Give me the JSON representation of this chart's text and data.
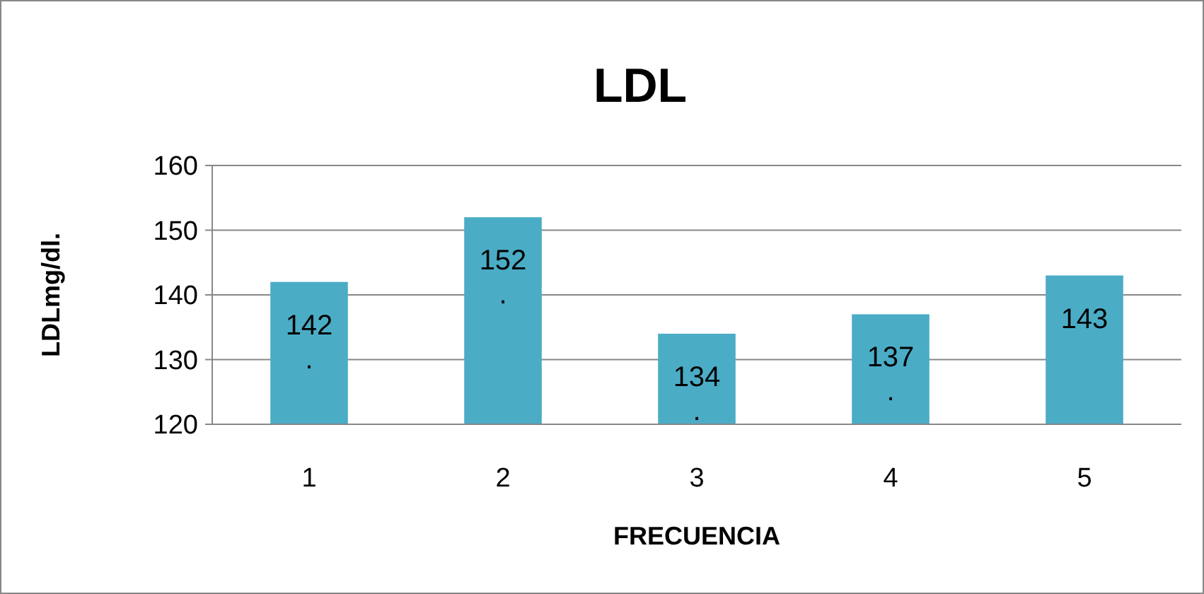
{
  "chart_data": {
    "type": "bar",
    "title": "LDL",
    "xlabel": "FRECUENCIA",
    "ylabel": "LDLmg/dl.",
    "categories": [
      "1",
      "2",
      "3",
      "4",
      "5"
    ],
    "values": [
      142,
      152,
      134,
      137,
      143
    ],
    "value_labels": [
      "142.",
      "152.",
      "134.",
      "137.",
      "143"
    ],
    "color": "#4bacc6",
    "ylim": [
      120,
      160
    ],
    "yticks": [
      120,
      130,
      140,
      150,
      160
    ],
    "grid": "y"
  }
}
